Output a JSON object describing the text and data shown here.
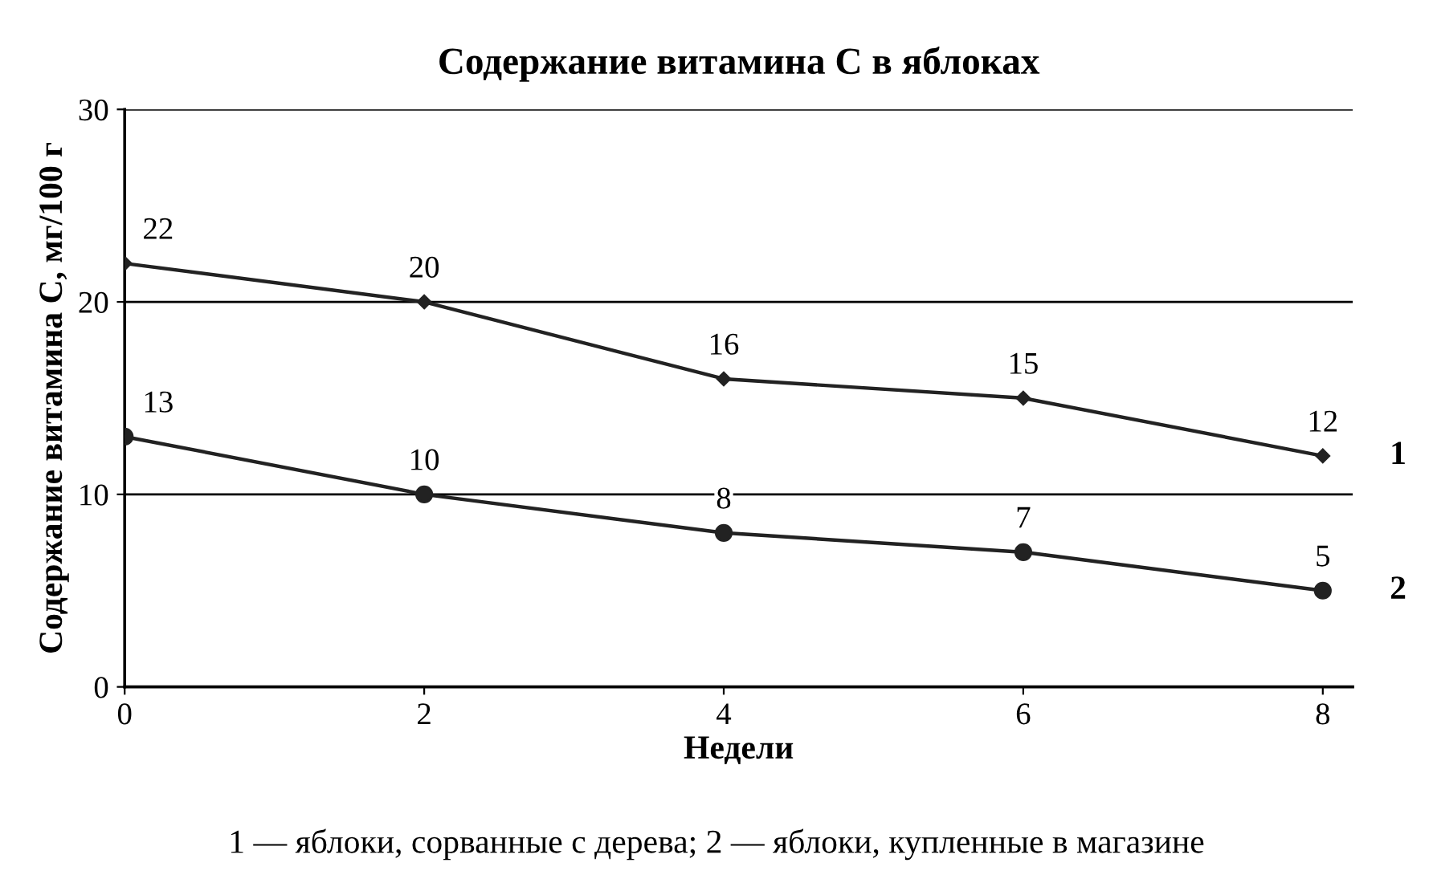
{
  "chart_data": {
    "type": "line",
    "title": "Содержание витамина C в яблоках",
    "xlabel": "Недели",
    "ylabel": "Содержание витамина C, мг/100 г",
    "x": [
      0,
      2,
      4,
      6,
      8
    ],
    "series": [
      {
        "name": "1",
        "color": "#222222",
        "marker": "diamond",
        "values": [
          22,
          20,
          16,
          15,
          12
        ]
      },
      {
        "name": "2",
        "color": "#222222",
        "marker": "circle",
        "values": [
          13,
          10,
          8,
          7,
          5
        ]
      }
    ],
    "xlim": [
      0,
      8.2
    ],
    "xticks": [
      0,
      2,
      4,
      6,
      8
    ],
    "ylim": [
      0,
      30
    ],
    "yticks": [
      0,
      10,
      20,
      30
    ],
    "grid": "y",
    "data_labels": true,
    "legend": false,
    "line_style": "solid",
    "annotations": [
      "1 — яблоки, сорванные с дерева; 2 — яблоки, купленные в магазине"
    ]
  }
}
